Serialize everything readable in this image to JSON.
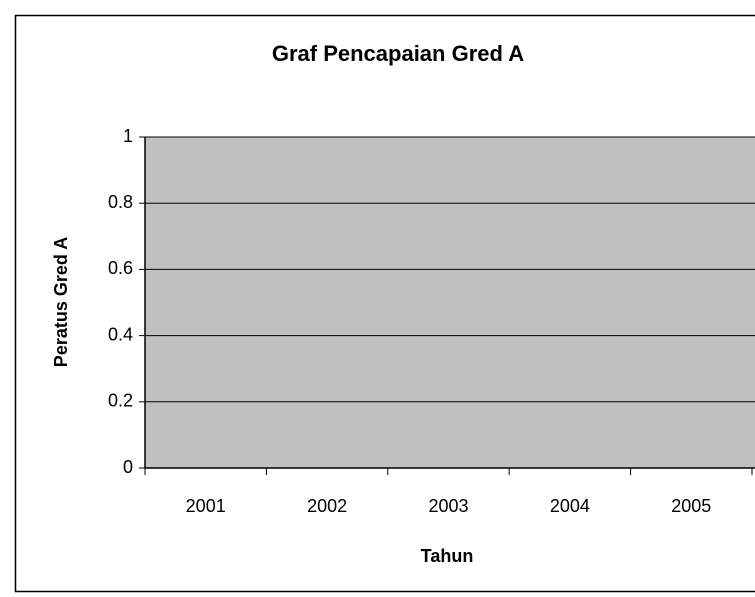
{
  "chart_data": {
    "type": "bar",
    "title": "Graf Pencapaian Gred A",
    "x_label": "Tahun",
    "y_label": "Peratus Gred A",
    "categories": [
      "2001",
      "2002",
      "2003",
      "2004",
      "2005"
    ],
    "ylim": [
      0,
      1
    ],
    "yticks": [
      0,
      0.2,
      0.4,
      0.6,
      0.8,
      1
    ],
    "grid": true,
    "plot_color": "#c0c0c0"
  }
}
